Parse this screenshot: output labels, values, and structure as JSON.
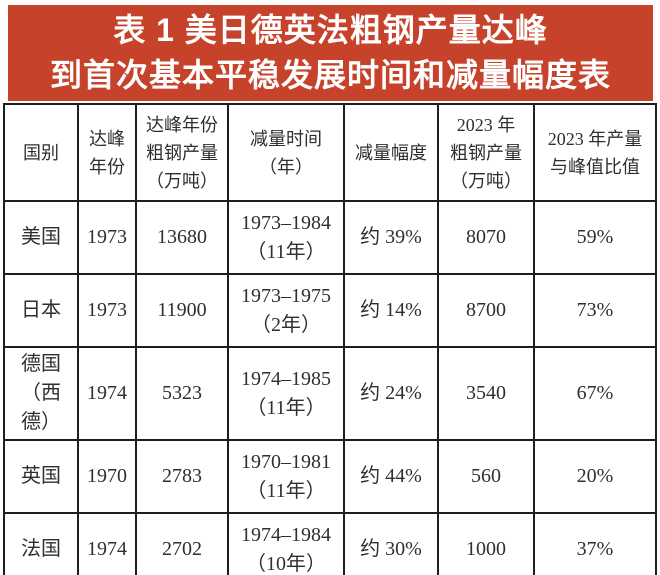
{
  "title": {
    "line1": "表 1 美日德英法粗钢产量达峰",
    "line2": "到首次基本平稳发展时间和减量幅度表"
  },
  "colors": {
    "banner_bg": "#c7422b",
    "banner_text": "#ffffff",
    "border": "#1e1e1e",
    "body_text": "#2f2f33"
  },
  "table": {
    "columns": [
      {
        "id": "country",
        "lines": [
          "国别"
        ]
      },
      {
        "id": "peak_year",
        "lines": [
          "达峰",
          "年份"
        ]
      },
      {
        "id": "peak_output",
        "lines": [
          "达峰年份",
          "粗钢产量",
          "（万吨）"
        ]
      },
      {
        "id": "reduction_period",
        "lines": [
          "减量时间",
          "（年）"
        ]
      },
      {
        "id": "reduction_rate",
        "lines": [
          "减量幅度"
        ]
      },
      {
        "id": "output_2023",
        "lines": [
          "2023 年",
          "粗钢产量",
          "（万吨）"
        ]
      },
      {
        "id": "ratio_2023",
        "lines": [
          "2023 年产量",
          "与峰值比值"
        ]
      }
    ],
    "rows": [
      {
        "country": [
          "美国"
        ],
        "peak_year": "1973",
        "peak_output": "13680",
        "reduction_period": [
          "1973–1984",
          "（11年）"
        ],
        "reduction_rate": "约 39%",
        "output_2023": "8070",
        "ratio_2023": "59%"
      },
      {
        "country": [
          "日本"
        ],
        "peak_year": "1973",
        "peak_output": "11900",
        "reduction_period": [
          "1973–1975",
          "（2年）"
        ],
        "reduction_rate": "约 14%",
        "output_2023": "8700",
        "ratio_2023": "73%"
      },
      {
        "country": [
          "德国",
          "（西德）"
        ],
        "peak_year": "1974",
        "peak_output": "5323",
        "reduction_period": [
          "1974–1985",
          "（11年）"
        ],
        "reduction_rate": "约 24%",
        "output_2023": "3540",
        "ratio_2023": "67%"
      },
      {
        "country": [
          "英国"
        ],
        "peak_year": "1970",
        "peak_output": "2783",
        "reduction_period": [
          "1970–1981",
          "（11年）"
        ],
        "reduction_rate": "约 44%",
        "output_2023": "560",
        "ratio_2023": "20%"
      },
      {
        "country": [
          "法国"
        ],
        "peak_year": "1974",
        "peak_output": "2702",
        "reduction_period": [
          "1974–1984",
          "（10年）"
        ],
        "reduction_rate": "约 30%",
        "output_2023": "1000",
        "ratio_2023": "37%"
      }
    ]
  }
}
